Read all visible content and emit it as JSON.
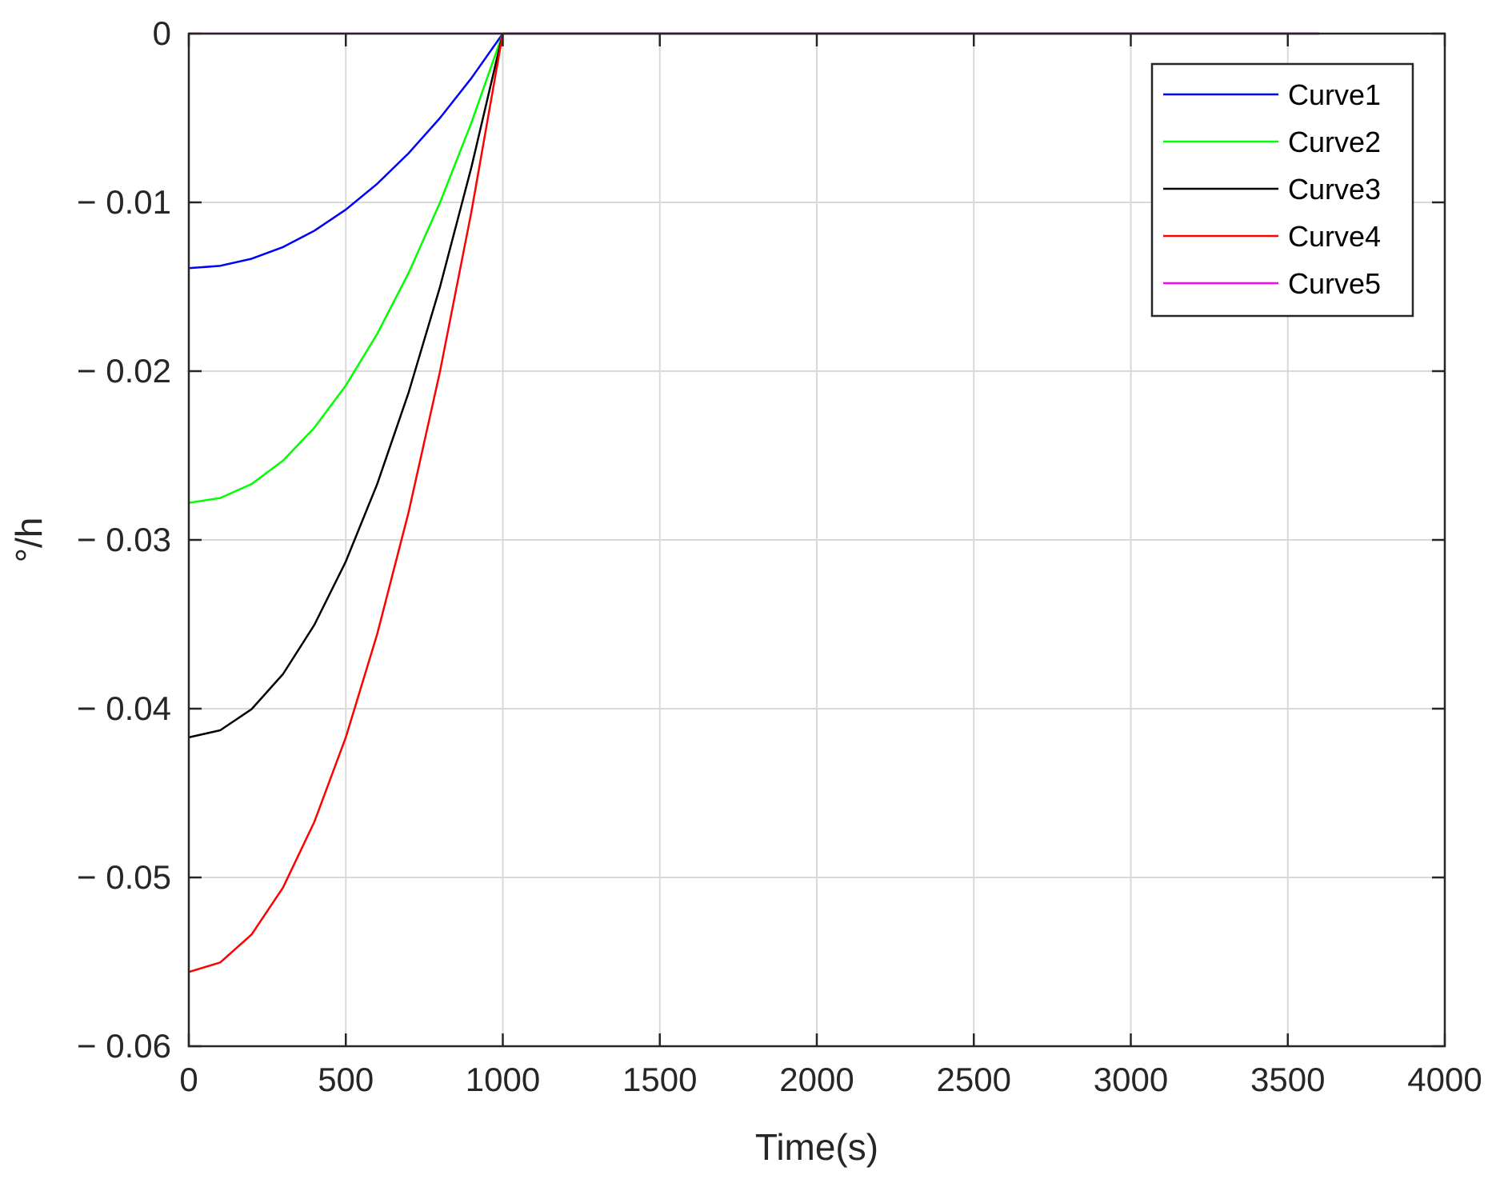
{
  "chart_data": {
    "type": "line",
    "xlabel": "Time(s)",
    "ylabel": "°/h",
    "xlim": [
      0,
      4000
    ],
    "ylim": [
      -0.06,
      0
    ],
    "xticks": [
      0,
      500,
      1000,
      1500,
      2000,
      2500,
      3000,
      3500,
      4000
    ],
    "yticks": [
      0,
      -0.01,
      -0.02,
      -0.03,
      -0.04,
      -0.05,
      -0.06
    ],
    "xtick_labels": [
      "0",
      "500",
      "1000",
      "1500",
      "2000",
      "2500",
      "3000",
      "3500",
      "4000"
    ],
    "ytick_labels": [
      "0",
      "− 0.01",
      "− 0.02",
      "− 0.03",
      "− 0.04",
      "− 0.05",
      "− 0.06"
    ],
    "grid": true,
    "legend_position": "top-right",
    "series": [
      {
        "name": "Curve1",
        "color": "#0000ff",
        "x": [
          0,
          100,
          200,
          300,
          400,
          500,
          600,
          700,
          800,
          900,
          1000,
          3600
        ],
        "y": [
          -0.0139,
          -0.01376,
          -0.01334,
          -0.01265,
          -0.01168,
          -0.01043,
          -0.0089,
          -0.00709,
          -0.005,
          -0.00264,
          0,
          0
        ]
      },
      {
        "name": "Curve2",
        "color": "#00ff00",
        "x": [
          0,
          100,
          200,
          300,
          400,
          500,
          600,
          700,
          800,
          900,
          1000,
          3600
        ],
        "y": [
          -0.0278,
          -0.02752,
          -0.02669,
          -0.0253,
          -0.02335,
          -0.02085,
          -0.01779,
          -0.01418,
          -0.01001,
          -0.00528,
          0,
          0
        ]
      },
      {
        "name": "Curve3",
        "color": "#000000",
        "x": [
          0,
          100,
          200,
          300,
          400,
          500,
          600,
          700,
          800,
          900,
          1000,
          3600
        ],
        "y": [
          -0.0417,
          -0.04128,
          -0.04003,
          -0.03795,
          -0.03503,
          -0.03128,
          -0.02669,
          -0.02127,
          -0.01501,
          -0.00792,
          0,
          0
        ]
      },
      {
        "name": "Curve4",
        "color": "#ff0000",
        "x": [
          0,
          100,
          200,
          300,
          400,
          500,
          600,
          700,
          800,
          900,
          1000,
          3600
        ],
        "y": [
          -0.0556,
          -0.05504,
          -0.05338,
          -0.0506,
          -0.0467,
          -0.0417,
          -0.03558,
          -0.02836,
          -0.02002,
          -0.01056,
          0,
          0
        ]
      },
      {
        "name": "Curve5",
        "color": "#ff00ff",
        "x": [
          0,
          1000,
          3600
        ],
        "y": [
          0,
          0,
          0
        ]
      }
    ]
  }
}
